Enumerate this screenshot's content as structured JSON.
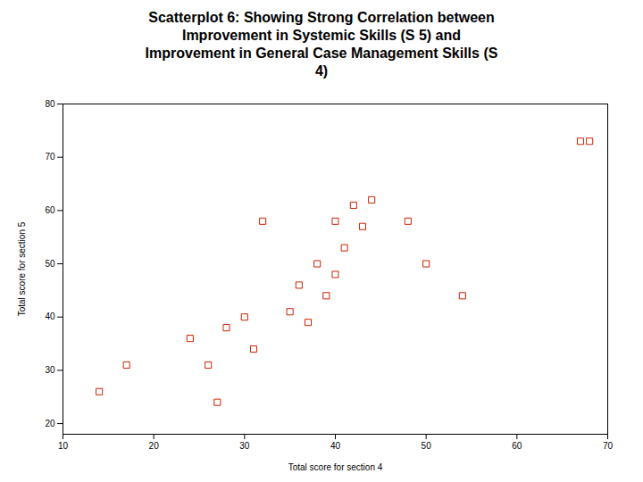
{
  "chart_data": {
    "type": "scatter",
    "title": "Scatterplot 6: Showing Strong Correlation between\nImprovement in Systemic Skills (S 5) and\nImprovement in General Case Management Skills (S\n4)",
    "xlabel": "Total score for section 4",
    "ylabel": "Total score for section 5",
    "x": [
      14,
      17,
      24,
      26,
      27,
      28,
      30,
      31,
      32,
      35,
      36,
      37,
      38,
      39,
      40,
      40,
      41,
      42,
      43,
      44,
      48,
      50,
      54,
      67,
      68
    ],
    "values": [
      26,
      31,
      36,
      31,
      24,
      38,
      40,
      34,
      58,
      41,
      46,
      39,
      50,
      44,
      58,
      48,
      53,
      61,
      57,
      62,
      58,
      50,
      44,
      73,
      73
    ],
    "xlim": [
      10,
      70
    ],
    "ylim": [
      18,
      80
    ],
    "xticks": [
      10,
      20,
      30,
      40,
      50,
      60,
      70
    ],
    "yticks": [
      20,
      30,
      40,
      50,
      60,
      70,
      80
    ],
    "color": "#cc2200",
    "marker": "square",
    "grid": false
  }
}
